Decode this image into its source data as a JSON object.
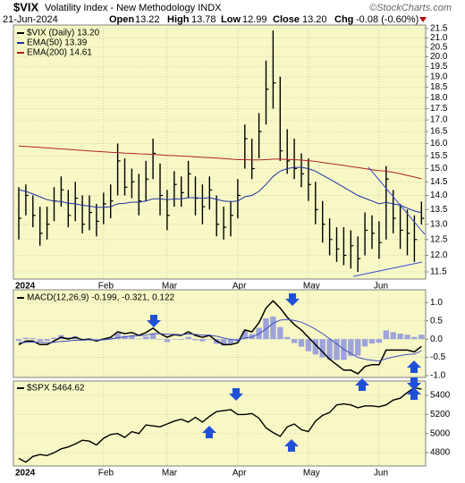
{
  "header": {
    "symbol": "$VIX",
    "name": "Volatility Index - New Methodology INDX",
    "copyright": "©StockCharts.com",
    "date": "21-Jun-2024",
    "quote": [
      {
        "label": "Open",
        "value": "13.22"
      },
      {
        "label": "High",
        "value": "13.78"
      },
      {
        "label": "Low",
        "value": "12.99"
      },
      {
        "label": "Close",
        "value": "13.20"
      },
      {
        "label": "Chg",
        "value": "-0.08 (-0.60%)"
      }
    ]
  },
  "chart_data": [
    {
      "type": "ohlc",
      "ylog": true,
      "grid": true,
      "categories": [
        "2024",
        null,
        null,
        null,
        null,
        null,
        null,
        null,
        null,
        null,
        null,
        null,
        "Feb",
        null,
        null,
        null,
        null,
        null,
        null,
        null,
        null,
        "Mar",
        null,
        null,
        null,
        null,
        null,
        null,
        null,
        null,
        null,
        "Apr",
        null,
        null,
        null,
        null,
        null,
        null,
        null,
        null,
        null,
        "May",
        null,
        null,
        null,
        null,
        null,
        null,
        null,
        null,
        null,
        "Jun",
        null,
        null,
        null,
        null,
        null,
        null
      ],
      "ylim": [
        11.29,
        21.7
      ],
      "yticks": [
        21.5,
        {
          "value": 21,
          "label": "21.0"
        },
        20.5,
        {
          "value": 20,
          "label": "20.0"
        },
        19.5,
        {
          "value": 19,
          "label": "19.0"
        },
        18.5,
        {
          "value": 18,
          "label": "18.0"
        },
        17.5,
        {
          "value": 17,
          "label": "17.0"
        },
        16.5,
        {
          "value": 16,
          "label": "16.0"
        },
        15.5,
        {
          "value": 15,
          "label": "15.0"
        },
        14.5,
        {
          "value": 14,
          "label": "14.0"
        },
        13.5,
        {
          "value": 13,
          "label": "13.0"
        },
        12.5,
        {
          "value": 12,
          "label": "12.0"
        },
        11.5
      ],
      "series": [
        {
          "name": "$VIX (Daily) 13.20",
          "color": "#000000",
          "high": [
            14.3,
            14.4,
            14.0,
            13.6,
            13.6,
            14.3,
            14.7,
            14.2,
            14.5,
            14.0,
            14.0,
            13.7,
            14.1,
            14.4,
            16.0,
            15.4,
            15.0,
            14.8,
            15.3,
            16.2,
            15.2,
            14.2,
            14.9,
            14.7,
            15.3,
            14.7,
            14.4,
            14.7,
            14.0,
            13.6,
            13.8,
            14.6,
            16.8,
            16.2,
            17.3,
            19.8,
            21.4,
            19.0,
            16.6,
            16.2,
            15.6,
            15.4,
            14.5,
            13.8,
            13.2,
            12.9,
            12.9,
            12.8,
            12.6,
            13.4,
            13.3,
            13.1,
            15.1,
            14.2,
            13.7,
            13.5,
            13.3,
            13.78
          ],
          "low": [
            12.5,
            13.3,
            12.9,
            12.3,
            12.5,
            13.1,
            13.6,
            12.9,
            13.1,
            12.7,
            12.8,
            12.6,
            13.0,
            13.2,
            14.0,
            14.0,
            13.9,
            13.3,
            13.8,
            14.6,
            13.3,
            12.8,
            13.6,
            13.6,
            13.9,
            13.3,
            13.0,
            13.5,
            12.6,
            12.5,
            12.6,
            13.2,
            15.0,
            14.6,
            15.4,
            16.8,
            17.5,
            15.3,
            14.8,
            14.6,
            14.3,
            13.8,
            13.0,
            12.4,
            12.0,
            11.8,
            11.7,
            11.6,
            11.5,
            12.0,
            12.2,
            11.9,
            12.5,
            12.7,
            12.2,
            12.0,
            11.8,
            12.99
          ],
          "close": [
            13.2,
            14.0,
            13.3,
            12.7,
            13.0,
            13.8,
            14.2,
            13.3,
            13.9,
            13.0,
            13.4,
            13.1,
            13.7,
            13.8,
            15.3,
            14.3,
            14.5,
            13.8,
            14.6,
            15.6,
            14.0,
            13.3,
            14.4,
            14.1,
            14.8,
            13.9,
            13.6,
            14.2,
            13.0,
            12.9,
            13.3,
            14.0,
            16.2,
            15.0,
            16.5,
            18.4,
            18.7,
            15.7,
            15.3,
            15.0,
            14.8,
            14.4,
            13.5,
            13.0,
            12.5,
            12.2,
            12.0,
            12.3,
            11.9,
            12.8,
            12.7,
            12.4,
            14.6,
            13.2,
            12.8,
            12.7,
            12.5,
            13.2
          ]
        },
        {
          "name": "EMA(50) 13.39",
          "color": "#1c2fa0",
          "values": [
            14.2,
            14.15,
            14.05,
            13.95,
            13.85,
            13.8,
            13.78,
            13.72,
            13.7,
            13.65,
            13.62,
            13.58,
            13.58,
            13.6,
            13.7,
            13.72,
            13.76,
            13.76,
            13.8,
            13.88,
            13.88,
            13.85,
            13.87,
            13.88,
            13.92,
            13.92,
            13.9,
            13.92,
            13.86,
            13.8,
            13.78,
            13.8,
            13.95,
            14.0,
            14.15,
            14.4,
            14.7,
            14.9,
            15.0,
            15.05,
            15.05,
            15.0,
            14.9,
            14.75,
            14.6,
            14.45,
            14.3,
            14.15,
            14.0,
            13.9,
            13.8,
            13.7,
            13.75,
            13.7,
            13.65,
            13.55,
            13.45,
            13.39
          ]
        },
        {
          "name": "EMA(200) 14.61",
          "color": "#b22222",
          "values": [
            15.9,
            15.88,
            15.86,
            15.84,
            15.82,
            15.8,
            15.78,
            15.76,
            15.74,
            15.72,
            15.7,
            15.68,
            15.66,
            15.64,
            15.63,
            15.61,
            15.6,
            15.58,
            15.57,
            15.56,
            15.54,
            15.52,
            15.51,
            15.49,
            15.48,
            15.46,
            15.44,
            15.43,
            15.41,
            15.39,
            15.37,
            15.35,
            15.35,
            15.34,
            15.34,
            15.35,
            15.37,
            15.37,
            15.36,
            15.35,
            15.33,
            15.31,
            15.28,
            15.24,
            15.2,
            15.16,
            15.12,
            15.08,
            15.04,
            15.0,
            14.96,
            14.92,
            14.9,
            14.86,
            14.8,
            14.74,
            14.68,
            14.61
          ]
        }
      ]
    },
    {
      "type": "macd",
      "title": "MACD(12,26,9) -0.199, -0.321, 0.122",
      "grid": true,
      "ylim": [
        -1.05,
        1.35
      ],
      "yticks": [
        {
          "value": 1,
          "label": "1.0"
        },
        0.5,
        {
          "value": 0,
          "label": "0.0"
        },
        -0.5,
        {
          "value": -1,
          "label": "-1.0"
        }
      ],
      "series": [
        {
          "type": "bar",
          "color": "#9ea3dc",
          "values": [
            -0.05,
            0.04,
            0.03,
            -0.06,
            -0.05,
            0.04,
            0.11,
            0.05,
            0.08,
            0.01,
            0.02,
            -0.02,
            0.02,
            0.05,
            0.16,
            0.09,
            0.09,
            0.01,
            0.07,
            0.15,
            0.0,
            -0.08,
            -0.01,
            -0.02,
            0.06,
            -0.03,
            -0.06,
            -0.01,
            -0.13,
            -0.18,
            -0.14,
            -0.07,
            0.22,
            0.14,
            0.31,
            0.57,
            0.62,
            0.33,
            0.06,
            -0.11,
            -0.21,
            -0.33,
            -0.42,
            -0.5,
            -0.56,
            -0.57,
            -0.57,
            -0.46,
            -0.45,
            -0.2,
            -0.12,
            -0.1,
            0.24,
            0.19,
            0.15,
            0.12,
            0.06,
            0.122
          ]
        },
        {
          "type": "line",
          "color": "#000000",
          "values": [
            -0.15,
            -0.05,
            -0.05,
            -0.15,
            -0.15,
            -0.05,
            0.05,
            0.0,
            0.05,
            -0.02,
            0.0,
            -0.05,
            0.0,
            0.05,
            0.2,
            0.15,
            0.18,
            0.1,
            0.18,
            0.3,
            0.15,
            0.05,
            0.12,
            0.1,
            0.2,
            0.1,
            0.05,
            0.1,
            -0.05,
            -0.15,
            -0.15,
            -0.1,
            0.25,
            0.2,
            0.45,
            0.85,
            1.05,
            0.85,
            0.6,
            0.4,
            0.25,
            0.05,
            -0.15,
            -0.35,
            -0.55,
            -0.7,
            -0.85,
            -0.85,
            -0.95,
            -0.75,
            -0.7,
            -0.7,
            -0.3,
            -0.3,
            -0.3,
            -0.3,
            -0.35,
            -0.199
          ]
        },
        {
          "type": "line",
          "color": "#3f4fbf",
          "values": [
            -0.1,
            -0.09,
            -0.08,
            -0.09,
            -0.1,
            -0.09,
            -0.06,
            -0.05,
            -0.03,
            -0.03,
            -0.02,
            -0.03,
            -0.02,
            0.0,
            0.04,
            0.06,
            0.09,
            0.09,
            0.11,
            0.15,
            0.15,
            0.13,
            0.13,
            0.12,
            0.14,
            0.13,
            0.11,
            0.11,
            0.08,
            0.03,
            -0.01,
            -0.03,
            0.03,
            0.06,
            0.14,
            0.28,
            0.43,
            0.52,
            0.54,
            0.51,
            0.46,
            0.38,
            0.27,
            0.15,
            0.01,
            -0.13,
            -0.28,
            -0.39,
            -0.5,
            -0.55,
            -0.58,
            -0.6,
            -0.54,
            -0.49,
            -0.45,
            -0.42,
            -0.41,
            -0.321
          ]
        }
      ]
    },
    {
      "type": "line",
      "grid": true,
      "categories": [
        "2024",
        null,
        null,
        null,
        null,
        null,
        null,
        null,
        null,
        null,
        null,
        null,
        "Feb",
        null,
        null,
        null,
        null,
        null,
        null,
        null,
        null,
        "Mar",
        null,
        null,
        null,
        null,
        null,
        null,
        null,
        null,
        null,
        "Apr",
        null,
        null,
        null,
        null,
        null,
        null,
        null,
        null,
        null,
        "May",
        null,
        null,
        null,
        null,
        null,
        null,
        null,
        null,
        null,
        "Jun",
        null,
        null,
        null,
        null,
        null,
        null
      ],
      "ylim": [
        4660,
        5550
      ],
      "yticks": [
        5400,
        5200,
        5000,
        4800
      ],
      "series": [
        {
          "name": "$SPX 5464.62",
          "color": "#000000",
          "values": [
            4740,
            4700,
            4760,
            4780,
            4770,
            4800,
            4840,
            4860,
            4890,
            4930,
            4920,
            4880,
            4950,
            4990,
            5000,
            4960,
            5020,
            5000,
            5090,
            5080,
            5070,
            5100,
            5130,
            5150,
            5120,
            5170,
            5120,
            5180,
            5230,
            5240,
            5250,
            5200,
            5200,
            5210,
            5160,
            5060,
            5010,
            4970,
            5070,
            5100,
            5040,
            5020,
            5130,
            5190,
            5220,
            5300,
            5310,
            5300,
            5270,
            5290,
            5290,
            5280,
            5300,
            5350,
            5370,
            5430,
            5480,
            5464.62
          ]
        }
      ]
    }
  ]
}
